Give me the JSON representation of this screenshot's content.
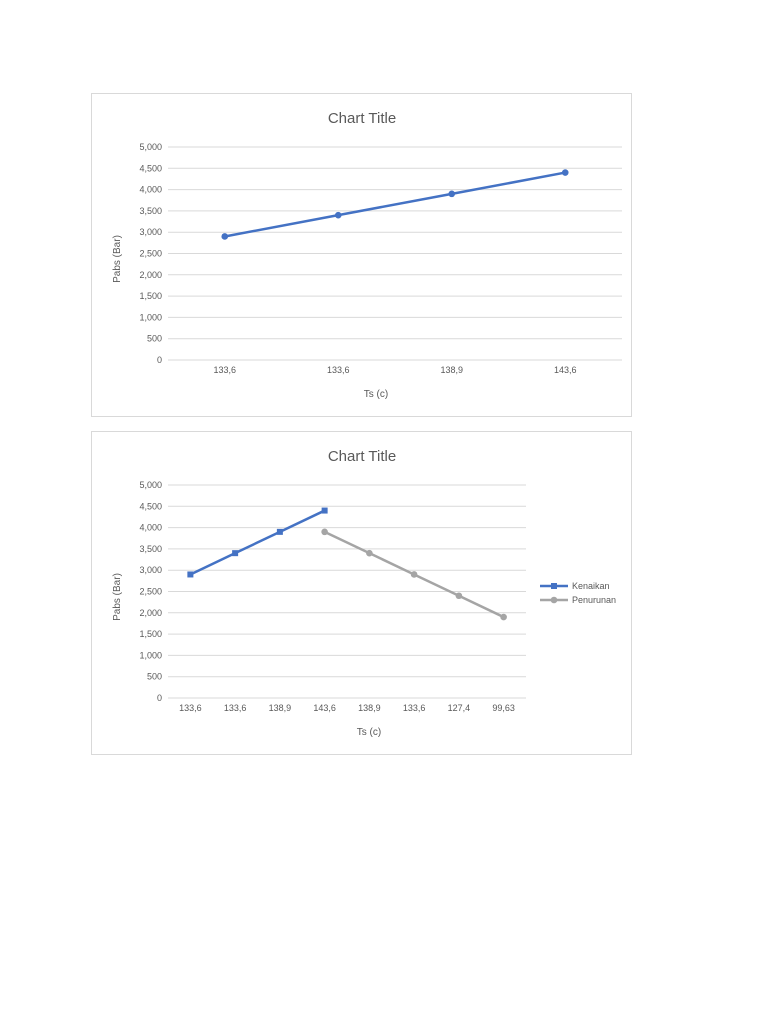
{
  "chart_data": [
    {
      "type": "line",
      "title": "Chart Title",
      "xlabel": "Ts (c)",
      "ylabel": "Pabs (Bar)",
      "categories": [
        "133,6",
        "133,6",
        "138,9",
        "143,6"
      ],
      "y_ticks": [
        "0",
        "500",
        "1,000",
        "1,500",
        "2,000",
        "2,500",
        "3,000",
        "3,500",
        "4,000",
        "4,500",
        "5,000"
      ],
      "ylim": [
        0,
        5000
      ],
      "grid": true,
      "legend": "none",
      "series": [
        {
          "values": [
            2900,
            3400,
            3900,
            4400
          ],
          "color": "#4472c4",
          "marker": "circle"
        }
      ]
    },
    {
      "type": "line",
      "title": "Chart Title",
      "xlabel": "Ts (c)",
      "ylabel": "Pabs (Bar)",
      "categories": [
        "133,6",
        "133,6",
        "138,9",
        "143,6",
        "138,9",
        "133,6",
        "127,4",
        "99,63"
      ],
      "y_ticks": [
        "0",
        "500",
        "1,000",
        "1,500",
        "2,000",
        "2,500",
        "3,000",
        "3,500",
        "4,000",
        "4,500",
        "5,000"
      ],
      "ylim": [
        0,
        5000
      ],
      "grid": true,
      "legend": "right",
      "series": [
        {
          "name": "Kenaikan",
          "values": [
            2900,
            3400,
            3900,
            4400,
            null,
            null,
            null,
            null
          ],
          "color": "#4472c4",
          "marker": "square"
        },
        {
          "name": "Penurunan",
          "values": [
            null,
            null,
            null,
            3900,
            3400,
            2900,
            2400,
            1900
          ],
          "color": "#a5a5a5",
          "marker": "circle"
        }
      ]
    }
  ]
}
